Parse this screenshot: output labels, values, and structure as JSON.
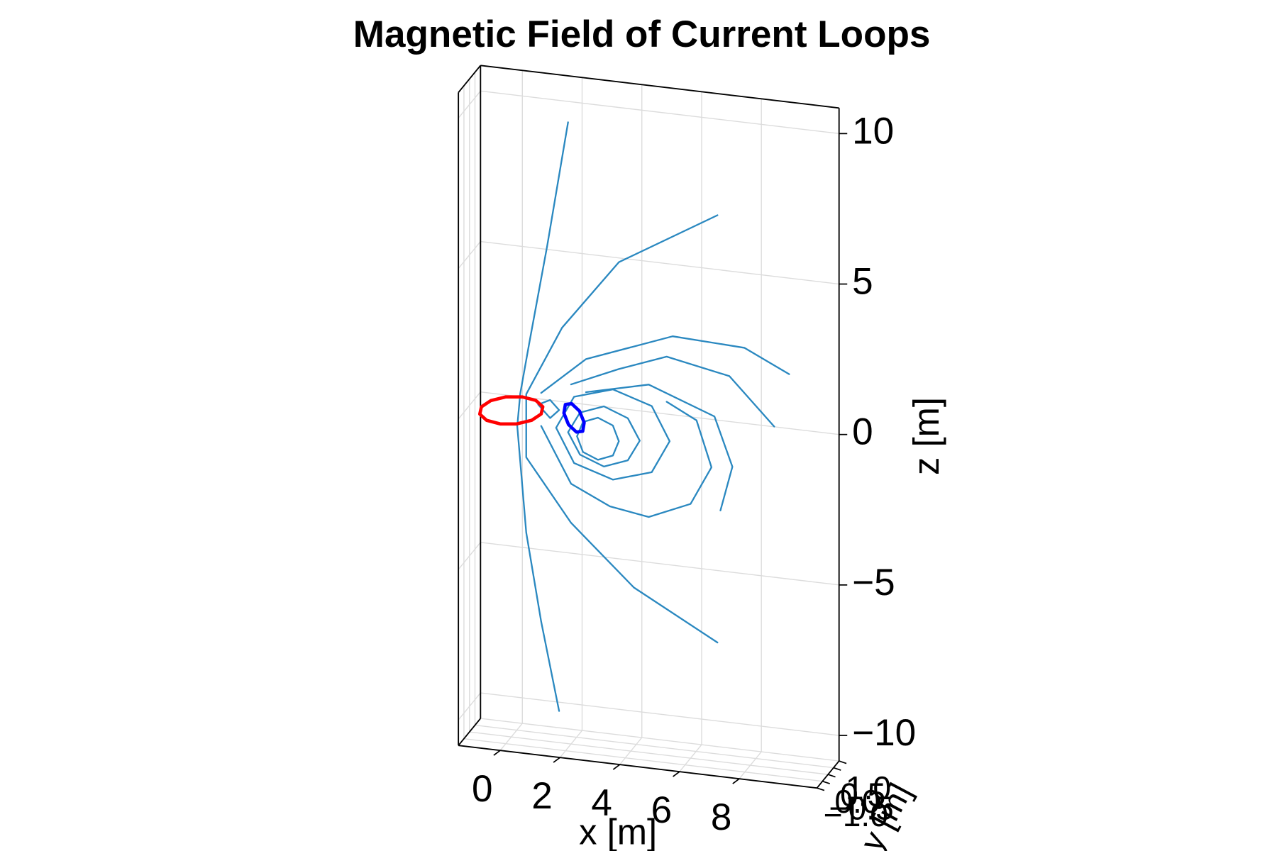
{
  "chart_data": {
    "type": "line3d",
    "title": "Magnetic Field of Current Loops",
    "xlabel": "x [m]",
    "ylabel": "y [m]",
    "zlabel": "z [m]",
    "xlim": [
      -1.4,
      10.6
    ],
    "ylim": [
      -1,
      1
    ],
    "zlim": [
      -10.85,
      10.85
    ],
    "xticks": [
      0,
      2,
      4,
      6,
      8
    ],
    "yticks": [
      {
        "value": -1,
        "label": "−1.0"
      },
      {
        "value": -0.5,
        "label": "−0.5"
      },
      {
        "value": 0,
        "label": "0.0"
      },
      {
        "value": 0.5,
        "label": "0.5"
      },
      {
        "value": 1,
        "label": "1.0"
      }
    ],
    "zticks": [
      {
        "value": -10,
        "label": "−10"
      },
      {
        "value": -5,
        "label": "−5"
      },
      0,
      5,
      10
    ],
    "grid": true,
    "series": [
      {
        "color": "#2a88c0",
        "x": [
          1.9,
          1.2,
          0.6,
          0.3,
          0.2,
          0.5,
          1.0,
          1.6
        ],
        "y": [
          0,
          0,
          0,
          0,
          0,
          0,
          0,
          0
        ],
        "z": [
          9.8,
          5.6,
          2.3,
          0.6,
          -0.5,
          -4.0,
          -6.9,
          -9.8
        ]
      },
      {
        "color": "#2a88c0",
        "x": [
          6.9,
          3.6,
          1.7,
          0.5,
          0.5,
          2.0,
          4.1,
          6.9
        ],
        "y": [
          0,
          0,
          0,
          0,
          0,
          0,
          0,
          0
        ],
        "z": [
          7.3,
          5.35,
          2.95,
          0.6,
          -1.5,
          -3.5,
          -5.4,
          -6.9
        ]
      },
      {
        "color": "#2a88c0",
        "x": [
          1.0,
          2.5,
          5.4,
          7.8,
          9.3
        ],
        "y": [
          0,
          0,
          0,
          0,
          0
        ],
        "z": [
          0.7,
          2.0,
          3.1,
          3.0,
          2.3
        ]
      },
      {
        "color": "#2a88c0",
        "x": [
          2.0,
          3.6,
          5.2,
          7.3,
          8.8
        ],
        "y": [
          0,
          0,
          0,
          0,
          0
        ],
        "z": [
          1.1,
          1.8,
          2.4,
          2.0,
          0.5
        ]
      },
      {
        "color": "#2a88c0",
        "x": [
          2.5,
          4.6,
          6.8,
          7.4,
          7.0
        ],
        "y": [
          0,
          0,
          0,
          0,
          0
        ],
        "z": [
          0.9,
          1.4,
          0.6,
          -1.0,
          -2.5
        ]
      },
      {
        "color": "#2a88c0",
        "x": [
          1.0,
          2.0,
          3.3,
          4.6,
          6.0,
          6.7,
          6.2,
          5.2
        ],
        "y": [
          0,
          0,
          0,
          0,
          0,
          0,
          0,
          0
        ],
        "z": [
          -0.4,
          -2.2,
          -2.8,
          -3.0,
          -2.4,
          -1.1,
          0.4,
          0.9
        ]
      },
      {
        "color": "#2a88c0",
        "x": [
          3.6,
          3.4,
          2.9,
          2.4,
          2.2,
          2.4,
          2.9,
          3.4,
          3.6
        ],
        "y": [
          0,
          0,
          0,
          0,
          0,
          0,
          0,
          0,
          0
        ],
        "z": [
          -0.6,
          -0.1,
          0.1,
          -0.1,
          -0.6,
          -1.1,
          -1.3,
          -1.1,
          -0.6
        ]
      },
      {
        "color": "#2a88c0",
        "x": [
          4.3,
          3.9,
          3.1,
          2.3,
          1.9,
          2.3,
          3.1,
          3.9,
          4.3
        ],
        "y": [
          0,
          0,
          0,
          0,
          0,
          0,
          0,
          0,
          0
        ],
        "z": [
          -0.5,
          0.2,
          0.5,
          0.2,
          -0.5,
          -1.2,
          -1.5,
          -1.2,
          -0.5
        ]
      },
      {
        "color": "#2a88c0",
        "x": [
          5.3,
          4.7,
          3.4,
          2.1,
          1.5,
          2.1,
          3.4,
          4.7,
          5.3
        ],
        "y": [
          0,
          0,
          0,
          0,
          0,
          0,
          0,
          0,
          0
        ],
        "z": [
          -0.4,
          0.7,
          1.1,
          0.7,
          -0.4,
          -1.5,
          -1.9,
          -1.5,
          -0.4
        ]
      },
      {
        "color": "#2a88c0",
        "x": [
          0.9,
          1.3,
          1.6,
          1.3,
          0.9
        ],
        "y": [
          0,
          0,
          0,
          0,
          0
        ],
        "z": [
          0.3,
          0.5,
          0.2,
          -0.1,
          0.3
        ]
      },
      {
        "color": "#ff0000",
        "x": [
          1,
          0.87,
          0.5,
          0,
          -0.5,
          -0.87,
          -1,
          -0.87,
          -0.5,
          0,
          0.5,
          0.87,
          1
        ],
        "y": [
          0,
          0.5,
          0.87,
          1,
          0.87,
          0.5,
          0,
          -0.5,
          -0.87,
          -1,
          -0.87,
          -0.5,
          0
        ],
        "z": [
          0,
          0,
          0,
          0,
          0,
          0,
          0,
          0,
          0,
          0,
          0,
          0,
          0
        ]
      },
      {
        "color": "#0000ff",
        "x": [
          2.39,
          2.31,
          2.1,
          1.89,
          1.81,
          1.89,
          2.1,
          2.31,
          2.39
        ],
        "y": [
          0,
          0.35,
          0.5,
          0.35,
          0,
          -0.35,
          -0.5,
          -0.35,
          0
        ],
        "z": [
          -0.41,
          -0.29,
          0,
          0.29,
          0.41,
          0.29,
          0,
          -0.29,
          -0.41
        ]
      }
    ]
  }
}
